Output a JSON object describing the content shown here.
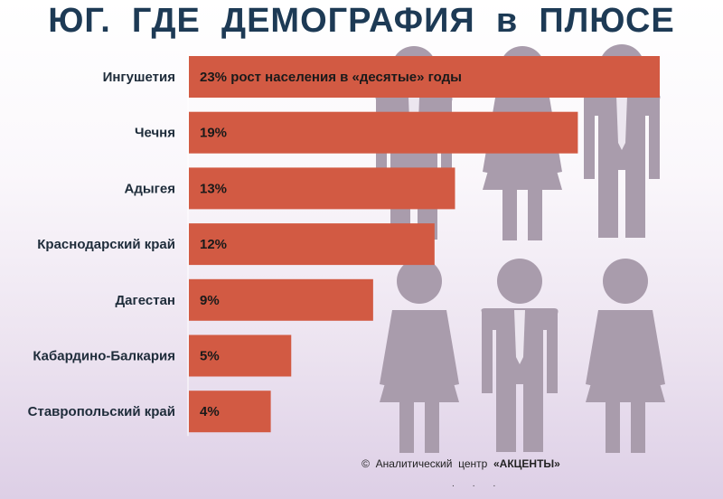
{
  "title": "ЮГ.  ГДЕ  ДЕМОГРАФИЯ  в  ПЛЮСЕ",
  "credit": {
    "text": "©  Аналитический  центр",
    "brand": "«АКЦЕНТЫ»"
  },
  "silhouettes": [
    {
      "kind": "man-icon"
    },
    {
      "kind": "woman-icon"
    },
    {
      "kind": "man-icon"
    },
    {
      "kind": "woman-icon"
    },
    {
      "kind": "man-icon"
    },
    {
      "kind": "woman-icon"
    }
  ],
  "chart_data": {
    "type": "bar",
    "orientation": "horizontal",
    "categories": [
      "Ингушетия",
      "Чечня",
      "Адыгея",
      "Краснодарский край",
      "Дагестан",
      "Кабардино-Балкария",
      "Ставропольский край"
    ],
    "values": [
      23,
      19,
      13,
      12,
      9,
      5,
      4
    ],
    "value_labels": [
      "23% рост населения в «десятые» годы",
      "19%",
      "13%",
      "12%",
      "9%",
      "5%",
      "4%"
    ],
    "title": "ЮГ.  ГДЕ  ДЕМОГРАФИЯ  в  ПЛЮСЕ",
    "xlabel": "",
    "ylabel": "",
    "xlim": [
      0,
      23
    ],
    "unit": "%",
    "bar_color": "#d25a43",
    "grid": false,
    "legend": "none"
  }
}
